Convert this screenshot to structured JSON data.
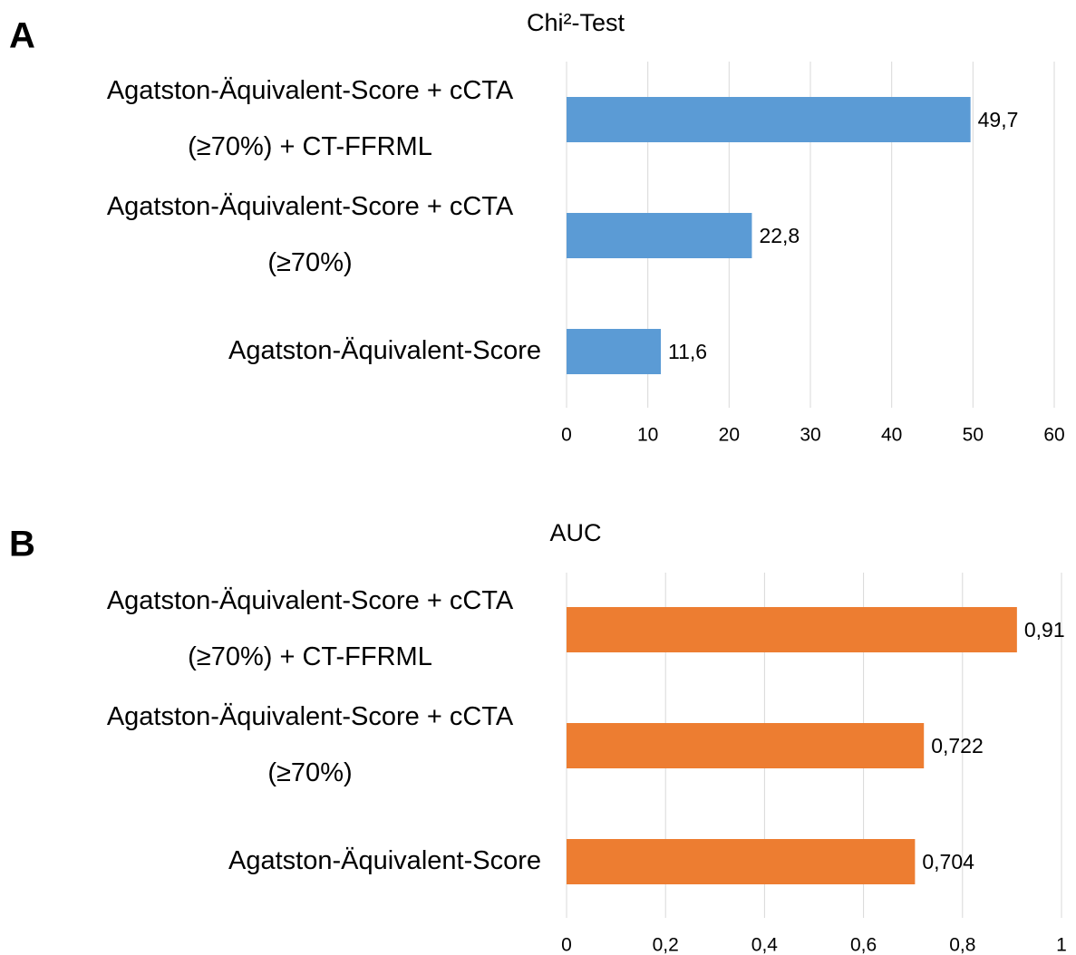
{
  "chart_data": [
    {
      "type": "bar",
      "orientation": "horizontal",
      "panel": "A",
      "title": "Chi²-Test",
      "categories": [
        "Agatston-Äquivalent-Score + cCTA (≥70%) + CT-FFRML",
        "Agatston-Äquivalent-Score + cCTA (≥70%)",
        "Agatston-Äquivalent-Score"
      ],
      "values": [
        49.7,
        22.8,
        11.6
      ],
      "value_labels": [
        "49,7",
        "22,8",
        "11,6"
      ],
      "color": "#5b9bd5",
      "xlim": [
        0,
        60
      ],
      "xticks": [
        0,
        10,
        20,
        30,
        40,
        50,
        60
      ],
      "grid": true
    },
    {
      "type": "bar",
      "orientation": "horizontal",
      "panel": "B",
      "title": "AUC",
      "categories": [
        "Agatston-Äquivalent-Score + cCTA (≥70%) + CT-FFRML",
        "Agatston-Äquivalent-Score + cCTA (≥70%)",
        "Agatston-Äquivalent-Score"
      ],
      "values": [
        0.91,
        0.722,
        0.704
      ],
      "value_labels": [
        "0,91",
        "0,722",
        "0,704"
      ],
      "color": "#ed7d31",
      "xlim": [
        0,
        1
      ],
      "xticks": [
        0,
        {
          "value": 0.2,
          "label": "0,2"
        },
        {
          "value": 0.4,
          "label": "0,4"
        },
        {
          "value": 0.6,
          "label": "0,6"
        },
        {
          "value": 0.8,
          "label": "0,8"
        },
        1
      ],
      "grid": true
    }
  ]
}
